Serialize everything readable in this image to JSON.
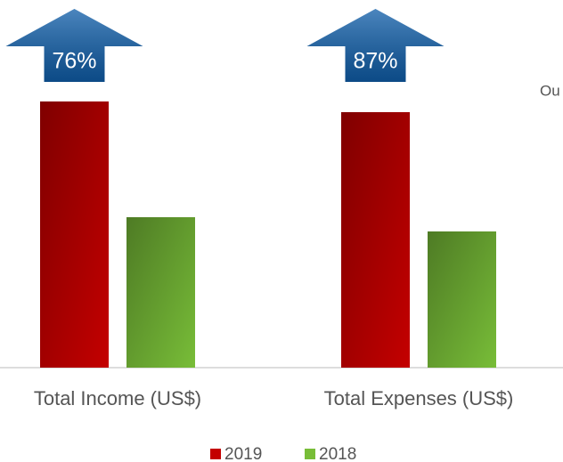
{
  "chart_data": {
    "type": "bar",
    "categories": [
      "Total Income (US$)",
      "Total Expenses (US$)"
    ],
    "series": [
      {
        "name": "2019",
        "color": "#c40000",
        "values": [
          299,
          287
        ]
      },
      {
        "name": "2018",
        "color": "#78bd38",
        "values": [
          169,
          153
        ]
      }
    ],
    "ylim": [
      0,
      300
    ],
    "annotations": [
      "76%",
      "87%"
    ],
    "arrow_color": "#0f5da8",
    "side_text": "Ou"
  }
}
